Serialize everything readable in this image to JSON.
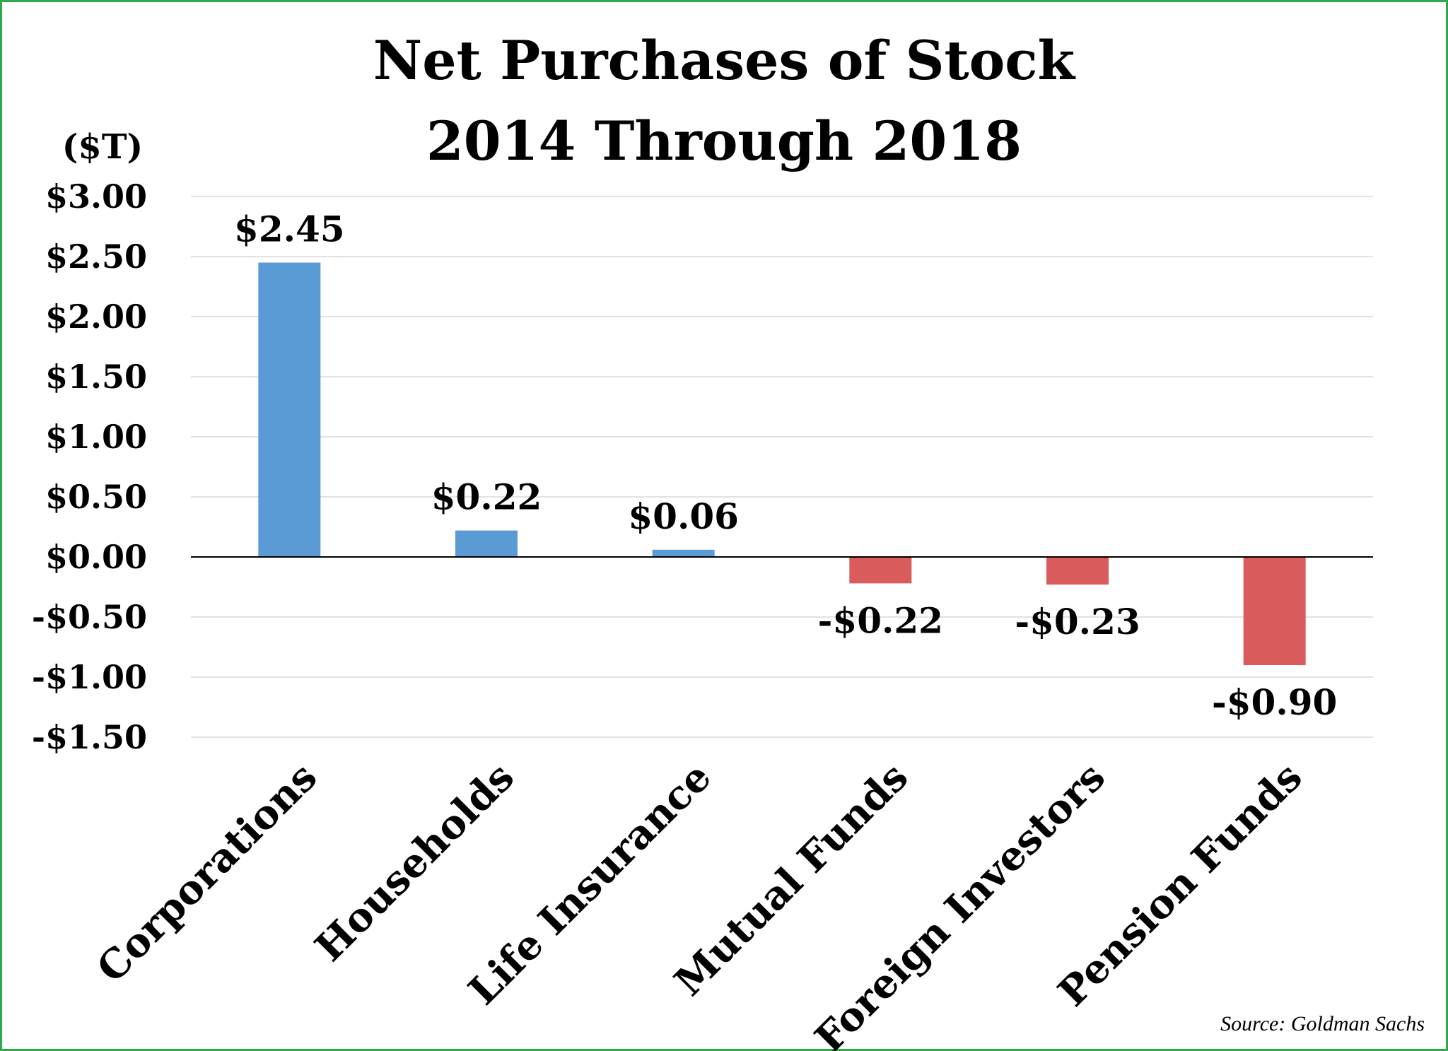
{
  "chart_data": {
    "type": "bar",
    "title_lines": [
      "Net Purchases of Stock",
      "2014 Through 2018"
    ],
    "ylabel": "($T)",
    "categories": [
      "Corporations",
      "Households",
      "Life Insurance",
      "Mutual Funds",
      "Foreign Investors",
      "Pension Funds"
    ],
    "values": [
      2.45,
      0.22,
      0.06,
      -0.22,
      -0.23,
      -0.9
    ],
    "data_labels": [
      "$2.45",
      "$0.22",
      "$0.06",
      "-$0.22",
      "-$0.23",
      "-$0.90"
    ],
    "ylim": [
      -1.5,
      3.0
    ],
    "yticks": [
      3.0,
      2.5,
      2.0,
      1.5,
      1.0,
      0.5,
      0.0,
      -0.5,
      -1.0,
      -1.5
    ],
    "ytick_labels": [
      "$3.00",
      "$2.50",
      "$2.00",
      "$1.50",
      "$1.00",
      "$0.50",
      "$0.00",
      "-$0.50",
      "-$1.00",
      "-$1.50"
    ],
    "grid": true,
    "legend": false,
    "colors": {
      "positive": "#5b9bd5",
      "negative": "#d95b5b",
      "border": "#2eaa4a"
    },
    "source": "Source: Goldman Sachs"
  }
}
